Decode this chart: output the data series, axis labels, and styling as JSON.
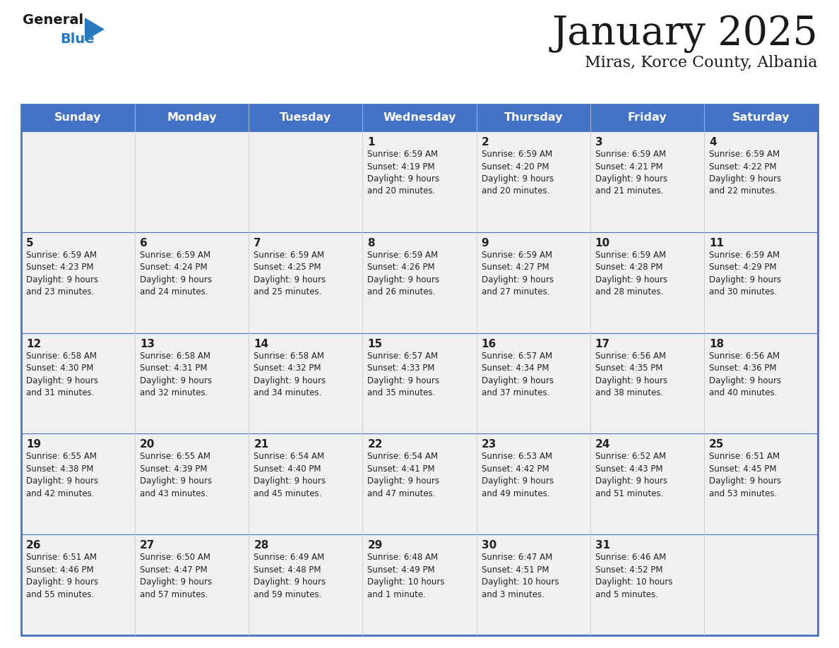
{
  "title": "January 2025",
  "subtitle": "Miras, Korce County, Albania",
  "days_of_week": [
    "Sunday",
    "Monday",
    "Tuesday",
    "Wednesday",
    "Thursday",
    "Friday",
    "Saturday"
  ],
  "header_bg": "#4472C4",
  "header_text": "#FFFFFF",
  "cell_bg": "#F0F0F0",
  "cell_border": "#4472C4",
  "row_line_color": "#4472C4",
  "text_color": "#222222",
  "title_color": "#1a1a1a",
  "generalblue_black": "#1a1a1a",
  "generalblue_blue": "#2878BE",
  "weeks": [
    [
      {
        "num": "",
        "sunrise": "",
        "sunset": "",
        "daylight": ""
      },
      {
        "num": "",
        "sunrise": "",
        "sunset": "",
        "daylight": ""
      },
      {
        "num": "",
        "sunrise": "",
        "sunset": "",
        "daylight": ""
      },
      {
        "num": "1",
        "sunrise": "6:59 AM",
        "sunset": "4:19 PM",
        "daylight": "9 hours\nand 20 minutes."
      },
      {
        "num": "2",
        "sunrise": "6:59 AM",
        "sunset": "4:20 PM",
        "daylight": "9 hours\nand 20 minutes."
      },
      {
        "num": "3",
        "sunrise": "6:59 AM",
        "sunset": "4:21 PM",
        "daylight": "9 hours\nand 21 minutes."
      },
      {
        "num": "4",
        "sunrise": "6:59 AM",
        "sunset": "4:22 PM",
        "daylight": "9 hours\nand 22 minutes."
      }
    ],
    [
      {
        "num": "5",
        "sunrise": "6:59 AM",
        "sunset": "4:23 PM",
        "daylight": "9 hours\nand 23 minutes."
      },
      {
        "num": "6",
        "sunrise": "6:59 AM",
        "sunset": "4:24 PM",
        "daylight": "9 hours\nand 24 minutes."
      },
      {
        "num": "7",
        "sunrise": "6:59 AM",
        "sunset": "4:25 PM",
        "daylight": "9 hours\nand 25 minutes."
      },
      {
        "num": "8",
        "sunrise": "6:59 AM",
        "sunset": "4:26 PM",
        "daylight": "9 hours\nand 26 minutes."
      },
      {
        "num": "9",
        "sunrise": "6:59 AM",
        "sunset": "4:27 PM",
        "daylight": "9 hours\nand 27 minutes."
      },
      {
        "num": "10",
        "sunrise": "6:59 AM",
        "sunset": "4:28 PM",
        "daylight": "9 hours\nand 28 minutes."
      },
      {
        "num": "11",
        "sunrise": "6:59 AM",
        "sunset": "4:29 PM",
        "daylight": "9 hours\nand 30 minutes."
      }
    ],
    [
      {
        "num": "12",
        "sunrise": "6:58 AM",
        "sunset": "4:30 PM",
        "daylight": "9 hours\nand 31 minutes."
      },
      {
        "num": "13",
        "sunrise": "6:58 AM",
        "sunset": "4:31 PM",
        "daylight": "9 hours\nand 32 minutes."
      },
      {
        "num": "14",
        "sunrise": "6:58 AM",
        "sunset": "4:32 PM",
        "daylight": "9 hours\nand 34 minutes."
      },
      {
        "num": "15",
        "sunrise": "6:57 AM",
        "sunset": "4:33 PM",
        "daylight": "9 hours\nand 35 minutes."
      },
      {
        "num": "16",
        "sunrise": "6:57 AM",
        "sunset": "4:34 PM",
        "daylight": "9 hours\nand 37 minutes."
      },
      {
        "num": "17",
        "sunrise": "6:56 AM",
        "sunset": "4:35 PM",
        "daylight": "9 hours\nand 38 minutes."
      },
      {
        "num": "18",
        "sunrise": "6:56 AM",
        "sunset": "4:36 PM",
        "daylight": "9 hours\nand 40 minutes."
      }
    ],
    [
      {
        "num": "19",
        "sunrise": "6:55 AM",
        "sunset": "4:38 PM",
        "daylight": "9 hours\nand 42 minutes."
      },
      {
        "num": "20",
        "sunrise": "6:55 AM",
        "sunset": "4:39 PM",
        "daylight": "9 hours\nand 43 minutes."
      },
      {
        "num": "21",
        "sunrise": "6:54 AM",
        "sunset": "4:40 PM",
        "daylight": "9 hours\nand 45 minutes."
      },
      {
        "num": "22",
        "sunrise": "6:54 AM",
        "sunset": "4:41 PM",
        "daylight": "9 hours\nand 47 minutes."
      },
      {
        "num": "23",
        "sunrise": "6:53 AM",
        "sunset": "4:42 PM",
        "daylight": "9 hours\nand 49 minutes."
      },
      {
        "num": "24",
        "sunrise": "6:52 AM",
        "sunset": "4:43 PM",
        "daylight": "9 hours\nand 51 minutes."
      },
      {
        "num": "25",
        "sunrise": "6:51 AM",
        "sunset": "4:45 PM",
        "daylight": "9 hours\nand 53 minutes."
      }
    ],
    [
      {
        "num": "26",
        "sunrise": "6:51 AM",
        "sunset": "4:46 PM",
        "daylight": "9 hours\nand 55 minutes."
      },
      {
        "num": "27",
        "sunrise": "6:50 AM",
        "sunset": "4:47 PM",
        "daylight": "9 hours\nand 57 minutes."
      },
      {
        "num": "28",
        "sunrise": "6:49 AM",
        "sunset": "4:48 PM",
        "daylight": "9 hours\nand 59 minutes."
      },
      {
        "num": "29",
        "sunrise": "6:48 AM",
        "sunset": "4:49 PM",
        "daylight": "10 hours\nand 1 minute."
      },
      {
        "num": "30",
        "sunrise": "6:47 AM",
        "sunset": "4:51 PM",
        "daylight": "10 hours\nand 3 minutes."
      },
      {
        "num": "31",
        "sunrise": "6:46 AM",
        "sunset": "4:52 PM",
        "daylight": "10 hours\nand 5 minutes."
      },
      {
        "num": "",
        "sunrise": "",
        "sunset": "",
        "daylight": ""
      }
    ]
  ]
}
